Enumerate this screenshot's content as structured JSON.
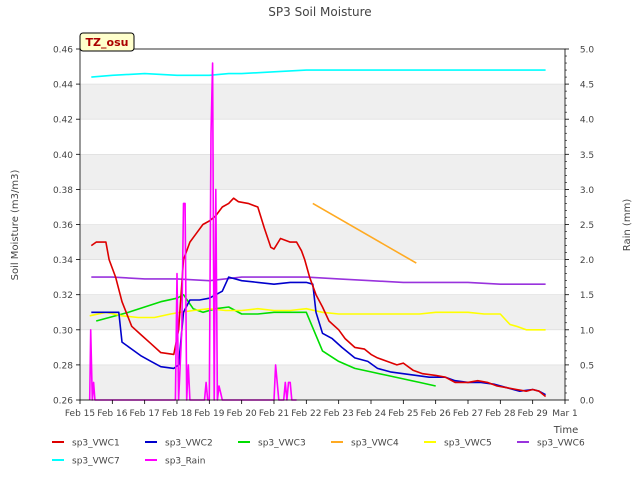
{
  "chart_data": {
    "type": "line",
    "title": "SP3 Soil Moisture",
    "badge": "TZ_osu",
    "xlabel": "Time",
    "ylabel": "Soil Moisture (m3/m3)",
    "y2label": "Rain (mm)",
    "xlim": [
      15,
      30
    ],
    "ylim": [
      0.26,
      0.46
    ],
    "y2lim": [
      0,
      5
    ],
    "x_ticks": [
      {
        "v": 15,
        "label": "Feb 15"
      },
      {
        "v": 16,
        "label": "Feb 16"
      },
      {
        "v": 17,
        "label": "Feb 17"
      },
      {
        "v": 18,
        "label": "Feb 18"
      },
      {
        "v": 19,
        "label": "Feb 19"
      },
      {
        "v": 20,
        "label": "Feb 20"
      },
      {
        "v": 21,
        "label": "Feb 21"
      },
      {
        "v": 22,
        "label": "Feb 22"
      },
      {
        "v": 23,
        "label": "Feb 23"
      },
      {
        "v": 24,
        "label": "Feb 24"
      },
      {
        "v": 25,
        "label": "Feb 25"
      },
      {
        "v": 26,
        "label": "Feb 26"
      },
      {
        "v": 27,
        "label": "Feb 27"
      },
      {
        "v": 28,
        "label": "Feb 28"
      },
      {
        "v": 29,
        "label": "Feb 29"
      },
      {
        "v": 30,
        "label": "Mar 1"
      }
    ],
    "y_ticks": [
      "0.26",
      "0.28",
      "0.30",
      "0.32",
      "0.34",
      "0.36",
      "0.38",
      "0.40",
      "0.42",
      "0.44",
      "0.46"
    ],
    "y2_ticks": [
      "0.0",
      "0.5",
      "1.0",
      "1.5",
      "2.0",
      "2.5",
      "3.0",
      "3.5",
      "4.0",
      "4.5",
      "5.0"
    ],
    "legend_position": "bottom",
    "series": [
      {
        "name": "sp3_VWC1",
        "color": "#dd0000",
        "axis": "left",
        "x": [
          15.35,
          15.5,
          15.8,
          15.9,
          16.1,
          16.3,
          16.6,
          16.9,
          17.2,
          17.5,
          17.9,
          18.05,
          18.2,
          18.4,
          18.6,
          18.8,
          19.0,
          19.2,
          19.4,
          19.6,
          19.75,
          19.9,
          20.2,
          20.5,
          20.7,
          20.9,
          21.0,
          21.2,
          21.5,
          21.7,
          21.85,
          21.95,
          22.1,
          22.3,
          22.5,
          22.7,
          23.0,
          23.2,
          23.5,
          23.8,
          24.0,
          24.2,
          24.5,
          24.8,
          25.0,
          25.3,
          25.6,
          26.0,
          26.3,
          26.6,
          27.0,
          27.3,
          27.6,
          27.9,
          28.2,
          28.5,
          28.8,
          29.0,
          29.2,
          29.4
        ],
        "y": [
          0.348,
          0.35,
          0.35,
          0.34,
          0.33,
          0.316,
          0.302,
          0.297,
          0.292,
          0.287,
          0.286,
          0.3,
          0.34,
          0.35,
          0.355,
          0.36,
          0.362,
          0.365,
          0.37,
          0.372,
          0.375,
          0.373,
          0.372,
          0.37,
          0.358,
          0.347,
          0.346,
          0.352,
          0.35,
          0.35,
          0.345,
          0.34,
          0.33,
          0.32,
          0.313,
          0.305,
          0.3,
          0.295,
          0.29,
          0.289,
          0.286,
          0.284,
          0.282,
          0.28,
          0.281,
          0.277,
          0.275,
          0.274,
          0.273,
          0.27,
          0.27,
          0.271,
          0.27,
          0.268,
          0.267,
          0.266,
          0.265,
          0.266,
          0.265,
          0.262
        ]
      },
      {
        "name": "sp3_VWC2",
        "color": "#0000cc",
        "axis": "left",
        "x": [
          15.35,
          15.7,
          16.0,
          16.2,
          16.3,
          16.6,
          16.9,
          17.2,
          17.5,
          17.9,
          18.05,
          18.2,
          18.4,
          18.7,
          19.0,
          19.2,
          19.4,
          19.6,
          20.0,
          20.5,
          21.0,
          21.5,
          22.0,
          22.2,
          22.3,
          22.5,
          22.8,
          23.1,
          23.5,
          23.9,
          24.2,
          24.6,
          25.0,
          25.4,
          25.8,
          26.0,
          26.3,
          26.6,
          27.0,
          27.4,
          27.8,
          28.2,
          28.6,
          29.0,
          29.2,
          29.4
        ],
        "y": [
          0.31,
          0.31,
          0.31,
          0.31,
          0.293,
          0.289,
          0.285,
          0.282,
          0.279,
          0.278,
          0.28,
          0.31,
          0.317,
          0.317,
          0.318,
          0.32,
          0.322,
          0.33,
          0.328,
          0.327,
          0.326,
          0.327,
          0.327,
          0.326,
          0.31,
          0.298,
          0.295,
          0.29,
          0.284,
          0.282,
          0.278,
          0.276,
          0.275,
          0.274,
          0.273,
          0.273,
          0.273,
          0.271,
          0.27,
          0.27,
          0.269,
          0.267,
          0.265,
          0.266,
          0.265,
          0.263
        ]
      },
      {
        "name": "sp3_VWC3",
        "color": "#00dd00",
        "axis": "left",
        "x": [
          15.5,
          16.5,
          17.5,
          18.0,
          18.2,
          18.5,
          18.8,
          19.2,
          19.6,
          20.0,
          20.5,
          21.0,
          21.5,
          22.0,
          22.5,
          23.0,
          23.5,
          24.0,
          24.5,
          25.0,
          25.5,
          26.0
        ],
        "y": [
          0.305,
          0.31,
          0.316,
          0.318,
          0.32,
          0.312,
          0.31,
          0.312,
          0.313,
          0.309,
          0.309,
          0.31,
          0.31,
          0.31,
          0.288,
          0.282,
          0.278,
          0.276,
          0.274,
          0.272,
          0.27,
          0.268
        ]
      },
      {
        "name": "sp3_VWC4",
        "color": "#ffaa22",
        "axis": "left",
        "x": [
          22.2,
          25.4
        ],
        "y": [
          0.372,
          0.338
        ]
      },
      {
        "name": "sp3_VWC5",
        "color": "#ffff00",
        "axis": "left",
        "x": [
          15.3,
          15.8,
          16.3,
          16.8,
          17.3,
          17.8,
          18.1,
          18.5,
          19.0,
          19.5,
          20.0,
          20.5,
          21.0,
          21.5,
          22.0,
          22.5,
          23.0,
          23.5,
          24.0,
          24.5,
          25.0,
          25.5,
          26.0,
          26.5,
          27.0,
          27.5,
          28.0,
          28.3,
          28.5,
          28.8,
          29.0,
          29.4
        ],
        "y": [
          0.308,
          0.31,
          0.308,
          0.307,
          0.307,
          0.309,
          0.31,
          0.311,
          0.312,
          0.311,
          0.311,
          0.312,
          0.311,
          0.311,
          0.312,
          0.31,
          0.309,
          0.309,
          0.309,
          0.309,
          0.309,
          0.309,
          0.31,
          0.31,
          0.31,
          0.309,
          0.309,
          0.303,
          0.302,
          0.3,
          0.3,
          0.3
        ]
      },
      {
        "name": "sp3_VWC6",
        "color": "#9933dd",
        "axis": "left",
        "x": [
          15.35,
          16.0,
          17.0,
          18.0,
          19.0,
          20.0,
          21.0,
          22.0,
          23.0,
          24.0,
          25.0,
          26.0,
          27.0,
          28.0,
          29.0,
          29.4
        ],
        "y": [
          0.33,
          0.33,
          0.329,
          0.329,
          0.328,
          0.33,
          0.33,
          0.33,
          0.329,
          0.328,
          0.327,
          0.327,
          0.327,
          0.326,
          0.326,
          0.326
        ]
      },
      {
        "name": "sp3_VWC7",
        "color": "#00ffff",
        "axis": "left",
        "x": [
          15.35,
          16.0,
          17.0,
          18.0,
          19.0,
          19.6,
          20.0,
          21.0,
          22.0,
          23.0,
          24.0,
          25.0,
          26.0,
          27.0,
          28.0,
          29.0,
          29.4
        ],
        "y": [
          0.444,
          0.445,
          0.446,
          0.445,
          0.445,
          0.446,
          0.446,
          0.447,
          0.448,
          0.448,
          0.448,
          0.448,
          0.448,
          0.448,
          0.448,
          0.448,
          0.448
        ]
      },
      {
        "name": "sp3_Rain",
        "color": "#ff00ff",
        "axis": "right",
        "x": [
          15.3,
          15.33,
          15.38,
          15.42,
          15.46,
          15.5,
          15.55,
          15.6,
          17.95,
          18.0,
          18.05,
          18.1,
          18.15,
          18.2,
          18.25,
          18.3,
          18.35,
          18.4,
          18.45,
          18.5,
          18.55,
          18.6,
          18.65,
          18.7,
          18.75,
          18.85,
          18.9,
          18.95,
          19.0,
          19.05,
          19.1,
          19.15,
          19.2,
          19.25,
          19.3,
          19.35,
          19.4,
          19.45,
          19.5,
          19.55,
          19.6,
          21.0,
          21.05,
          21.1,
          21.15,
          21.2,
          21.3,
          21.35,
          21.4,
          21.45,
          21.5,
          21.55,
          21.6,
          21.65,
          21.7
        ],
        "y": [
          0,
          1.0,
          0,
          0.25,
          0,
          0,
          0,
          0,
          0,
          1.8,
          0,
          0.5,
          1.0,
          2.8,
          2.8,
          0,
          0.5,
          0,
          0,
          0,
          0,
          0,
          0,
          0,
          0,
          0,
          0.25,
          0,
          0,
          3.8,
          4.8,
          0,
          3.0,
          0,
          0.2,
          0.1,
          0,
          0,
          0,
          0,
          0,
          0,
          0.5,
          0.25,
          0,
          0,
          0,
          0.25,
          0,
          0.25,
          0.25,
          0,
          0,
          0,
          0
        ]
      }
    ]
  }
}
